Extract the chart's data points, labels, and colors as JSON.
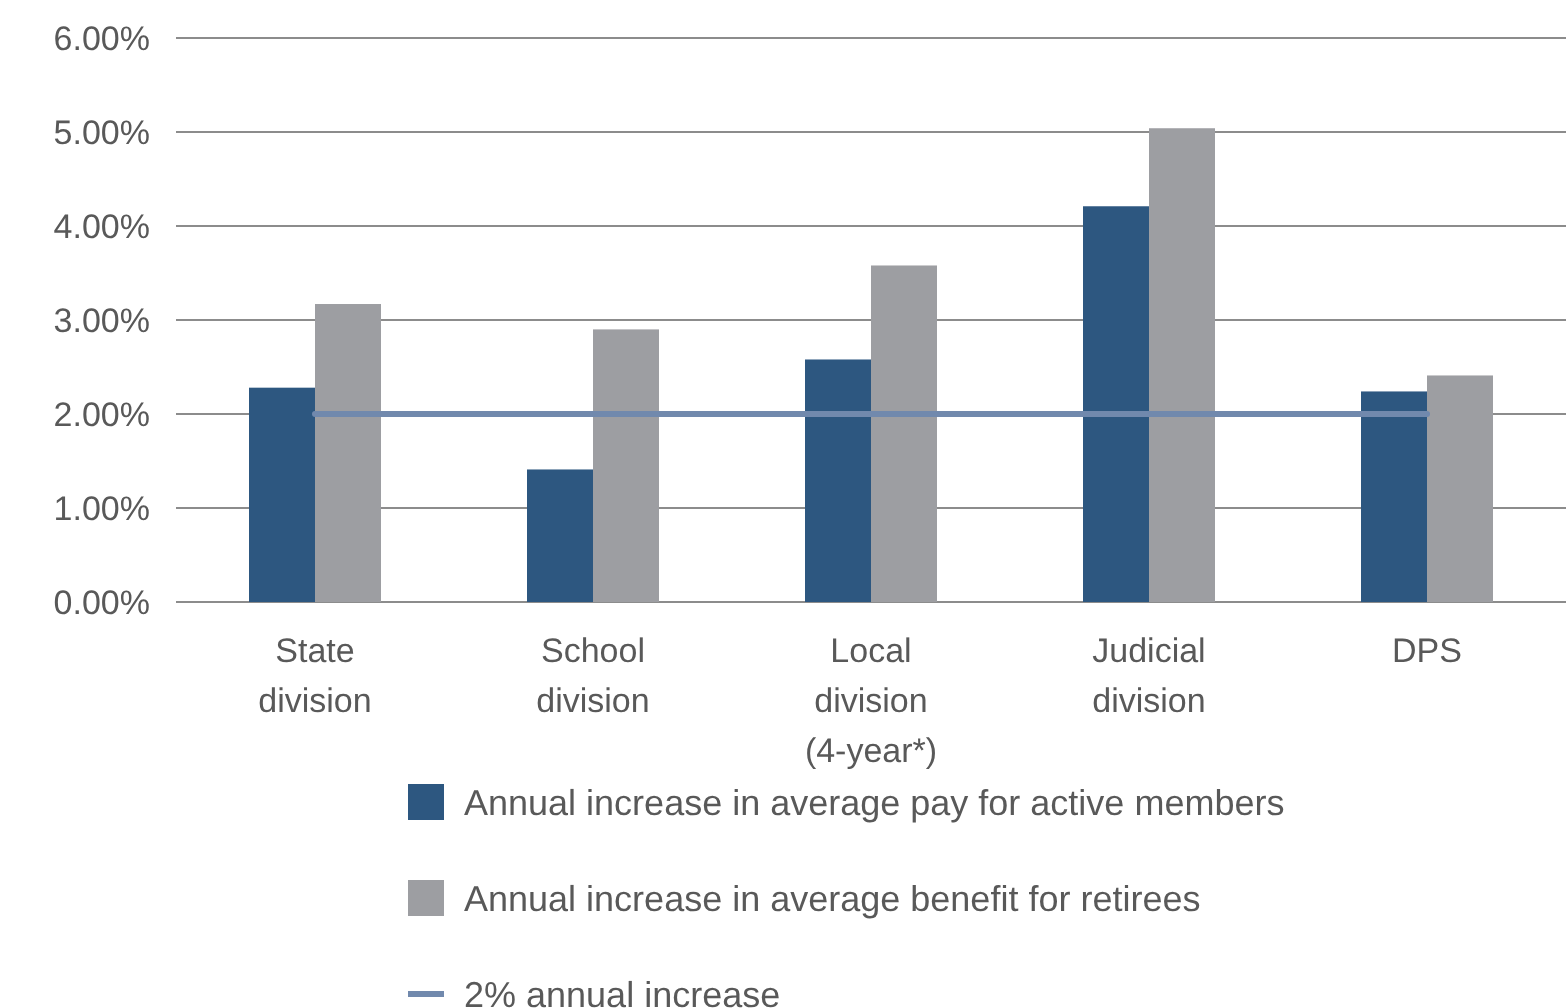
{
  "chart_data": {
    "type": "bar",
    "categories": [
      "State division",
      "School division",
      "Local division (4-year*)",
      "Judicial division",
      "DPS"
    ],
    "series": [
      {
        "name": "Annual increase in average pay for active members",
        "color": "#2d5780",
        "values": [
          2.28,
          1.41,
          2.58,
          4.21,
          2.24
        ]
      },
      {
        "name": "Annual increase in average benefit for retirees",
        "color": "#9d9ea2",
        "values": [
          3.17,
          2.9,
          3.58,
          5.04,
          2.41
        ]
      },
      {
        "name": "2% annual increase",
        "type": "line",
        "color": "#7189ad",
        "values": [
          2,
          2,
          2,
          2,
          2
        ]
      }
    ],
    "ylim": [
      0,
      6
    ],
    "yticks": [
      {
        "value": 0,
        "label": "0.00%"
      },
      {
        "value": 1,
        "label": "1.00%"
      },
      {
        "value": 2,
        "label": "2.00%"
      },
      {
        "value": 3,
        "label": "3.00%"
      },
      {
        "value": 4,
        "label": "4.00%"
      },
      {
        "value": 5,
        "label": "5.00%"
      },
      {
        "value": 6,
        "label": "6.00%"
      }
    ],
    "grid": "y",
    "legend": "bottom"
  }
}
